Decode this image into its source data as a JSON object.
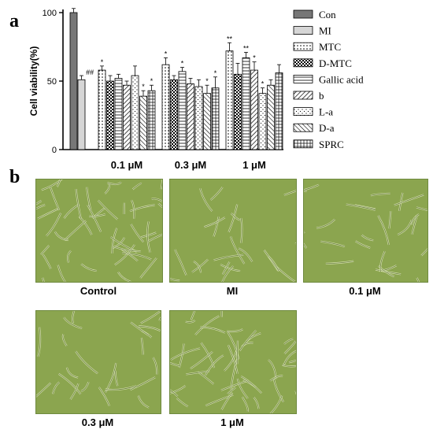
{
  "panel_a_label": "a",
  "panel_b_label": "b",
  "chart_data": {
    "type": "bar",
    "ylabel": "Cell viability(%)",
    "xlabel": "",
    "ylim": [
      0,
      100
    ],
    "yticks": [
      0,
      50,
      100
    ],
    "groups": [
      "0.1 μM",
      "0.3 μM",
      "1 μM"
    ],
    "controls": [
      {
        "name": "Con",
        "value": 100,
        "error": 3
      },
      {
        "name": "MI",
        "value": 51,
        "error": 3,
        "annotation": "##"
      }
    ],
    "series": [
      {
        "name": "MTC",
        "values": [
          58,
          62,
          72
        ],
        "errors": [
          3,
          5,
          6
        ],
        "annotations": [
          "*",
          "*",
          "**"
        ]
      },
      {
        "name": "D-MTC",
        "values": [
          50,
          51,
          55
        ],
        "errors": [
          4,
          3,
          8
        ],
        "annotations": [
          "",
          "",
          ""
        ]
      },
      {
        "name": "Gallic acid",
        "values": [
          52,
          57,
          67
        ],
        "errors": [
          3,
          3,
          4
        ],
        "annotations": [
          "",
          "*",
          "**"
        ]
      },
      {
        "name": "b",
        "values": [
          47,
          48,
          58
        ],
        "errors": [
          3,
          4,
          6
        ],
        "annotations": [
          "",
          "",
          "*"
        ]
      },
      {
        "name": "L-a",
        "values": [
          54,
          46,
          41
        ],
        "errors": [
          7,
          5,
          4
        ],
        "annotations": [
          "",
          "",
          "*"
        ]
      },
      {
        "name": "D-a",
        "values": [
          39,
          41,
          47
        ],
        "errors": [
          4,
          6,
          4
        ],
        "annotations": [
          "*",
          "*",
          ""
        ]
      },
      {
        "name": "SPRC",
        "values": [
          43,
          45,
          56
        ],
        "errors": [
          4,
          8,
          6
        ],
        "annotations": [
          "*",
          "*",
          ""
        ]
      }
    ],
    "legend_position": "right",
    "grid": false
  },
  "micrographs": [
    {
      "label": "Control"
    },
    {
      "label": "MI"
    },
    {
      "label": "0.1 μM"
    },
    {
      "label": "0.3 μM"
    },
    {
      "label": "1 μM"
    }
  ]
}
